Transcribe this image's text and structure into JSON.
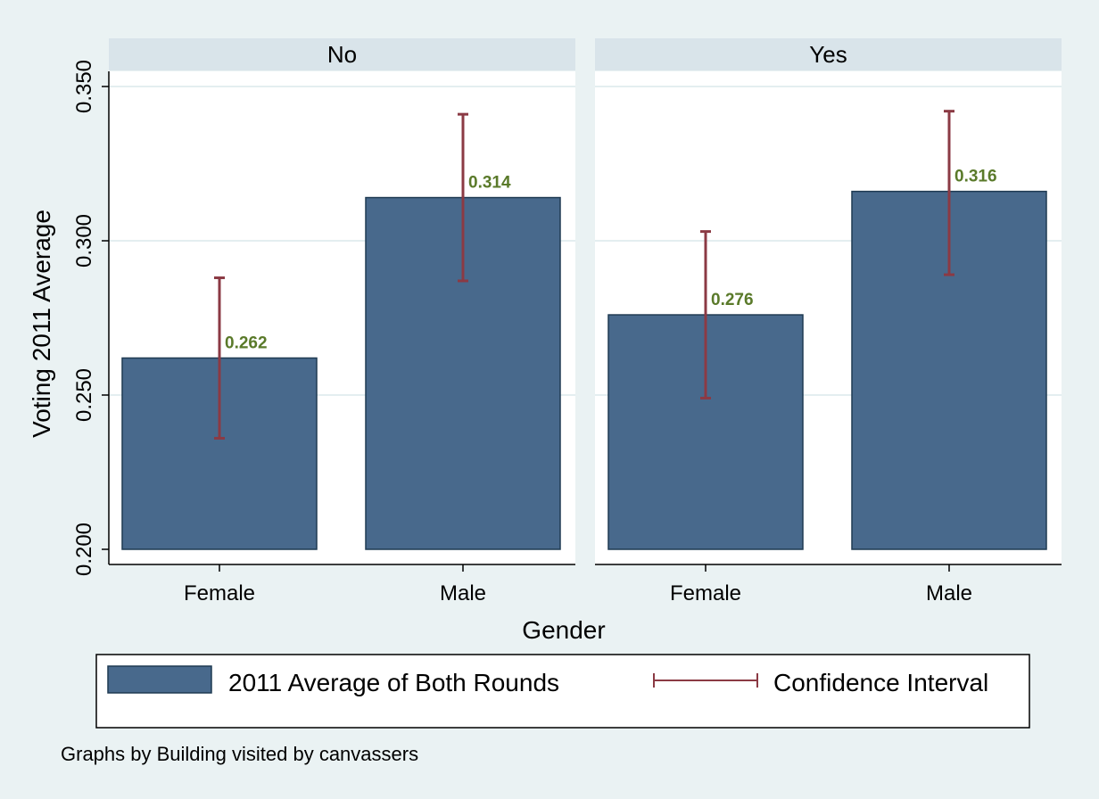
{
  "chart_data": {
    "type": "bar",
    "panel_by_label": "Graphs by Building visited by canvassers",
    "panels": [
      {
        "title": "No",
        "categories": [
          "Female",
          "Male"
        ],
        "values": [
          0.262,
          0.314
        ],
        "value_labels": [
          "0.262",
          "0.314"
        ],
        "ci_low": [
          0.236,
          0.287
        ],
        "ci_high": [
          0.288,
          0.341
        ]
      },
      {
        "title": "Yes",
        "categories": [
          "Female",
          "Male"
        ],
        "values": [
          0.276,
          0.316
        ],
        "value_labels": [
          "0.276",
          "0.316"
        ],
        "ci_low": [
          0.249,
          0.289
        ],
        "ci_high": [
          0.303,
          0.342
        ]
      }
    ],
    "xlabel": "Gender",
    "ylabel": "Voting 2011 Average",
    "ylim": [
      0.2,
      0.35
    ],
    "yticks": [
      0.2,
      0.25,
      0.3,
      0.35
    ],
    "ytick_labels": [
      "0.200",
      "0.250",
      "0.300",
      "0.350"
    ],
    "grid": true,
    "legend": {
      "position": "bottom",
      "entries": [
        "2011 Average of Both Rounds",
        "Confidence Interval"
      ]
    },
    "colors": {
      "bar": "#48698c",
      "bar_edge": "#1f3a52",
      "ci": "#8b3a44",
      "value_label": "#5a7a2a",
      "strip": "#d9e4ea",
      "grid": "#e4eef0",
      "background": "#eaf2f3"
    }
  }
}
